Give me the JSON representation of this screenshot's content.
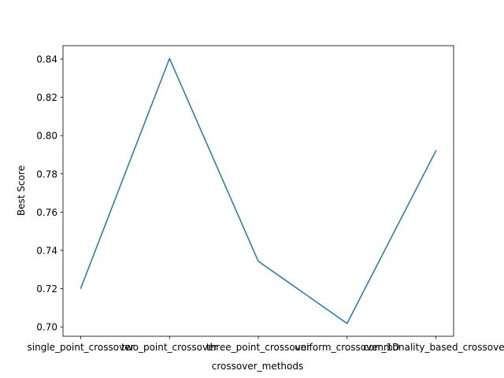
{
  "chart_data": {
    "type": "line",
    "categories": [
      "single_point_crossover",
      "two_point_crossover",
      "three_point_crossover",
      "uniform_crossover_1D",
      "commonality_based_crossover"
    ],
    "series": [
      {
        "values": [
          0.7202,
          0.8403,
          0.7343,
          0.7018,
          0.792
        ],
        "color": "#1f77b4"
      }
    ],
    "title": "",
    "xlabel": "crossover_methods",
    "ylabel": "Best Score",
    "ylim": [
      0.6951,
      0.847
    ],
    "yticks": [
      "0.70",
      "0.72",
      "0.74",
      "0.76",
      "0.78",
      "0.80",
      "0.82",
      "0.84"
    ],
    "grid": false,
    "legend": false
  }
}
